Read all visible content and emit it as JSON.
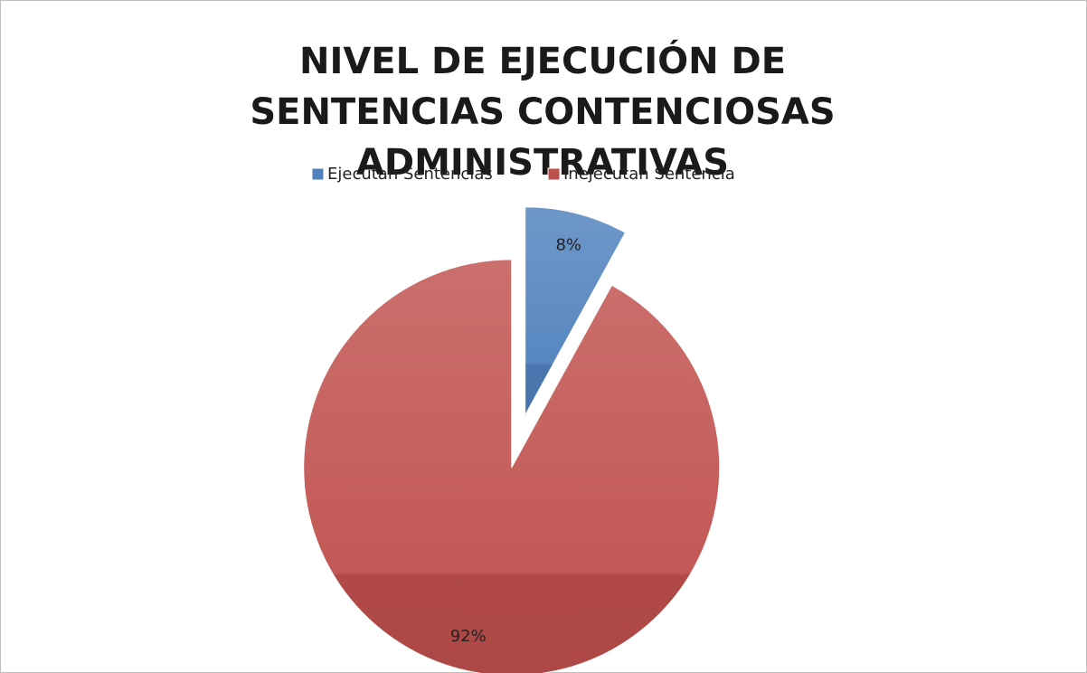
{
  "chart_data": {
    "type": "pie",
    "title": "NIVEL DE EJECUCIÓN DE SENTENCIAS CONTENCIOSAS ADMINISTRATIVAS",
    "categories": [
      "Ejecutan Sentencias",
      "Inejecutan Sentencia"
    ],
    "values": [
      8,
      92
    ],
    "value_labels": [
      "8%",
      "92%"
    ],
    "colors": [
      "#4f81bd",
      "#c0504d"
    ],
    "legend": "top"
  }
}
